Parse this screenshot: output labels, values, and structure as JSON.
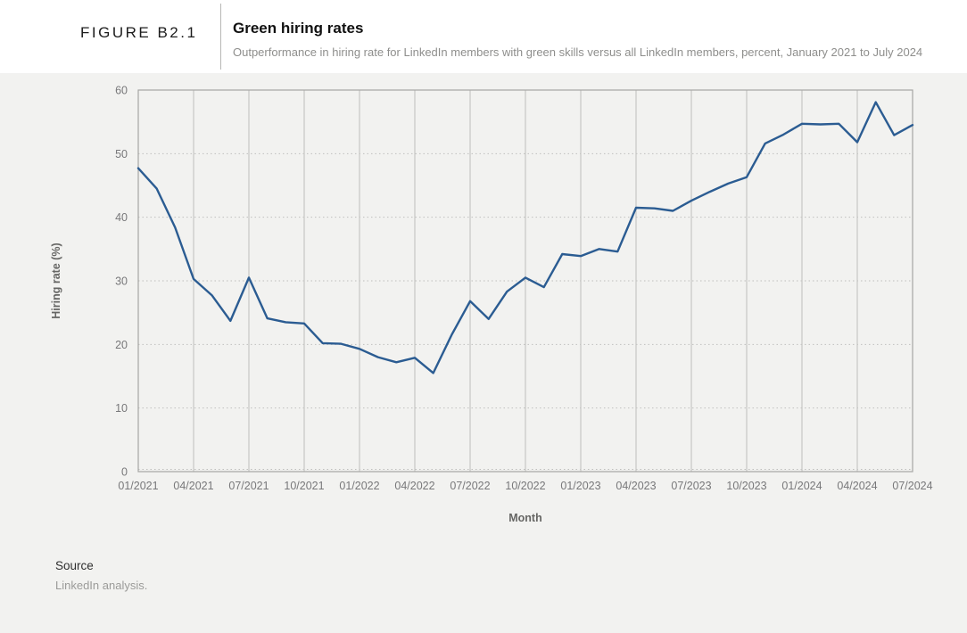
{
  "header": {
    "figure_label": "FIGURE B2.1",
    "title": "Green hiring rates",
    "subtitle": "Outperformance in hiring rate for LinkedIn members with green skills versus all LinkedIn members, percent, January 2021 to July 2024"
  },
  "chart_data": {
    "type": "line",
    "title": "Green hiring rates",
    "xlabel": "Month",
    "ylabel": "Hiring rate (%)",
    "ylim": [
      0,
      60
    ],
    "yticks": [
      0,
      10,
      20,
      30,
      40,
      50,
      60
    ],
    "xtick_labels": [
      "01/2021",
      "04/2021",
      "07/2021",
      "10/2021",
      "01/2022",
      "04/2022",
      "07/2022",
      "10/2022",
      "01/2023",
      "04/2023",
      "07/2023",
      "10/2023",
      "01/2024",
      "04/2024",
      "07/2024"
    ],
    "categories": [
      "01/2021",
      "02/2021",
      "03/2021",
      "04/2021",
      "05/2021",
      "06/2021",
      "07/2021",
      "08/2021",
      "09/2021",
      "10/2021",
      "11/2021",
      "12/2021",
      "01/2022",
      "02/2022",
      "03/2022",
      "04/2022",
      "05/2022",
      "06/2022",
      "07/2022",
      "08/2022",
      "09/2022",
      "10/2022",
      "11/2022",
      "12/2022",
      "01/2023",
      "02/2023",
      "03/2023",
      "04/2023",
      "05/2023",
      "06/2023",
      "07/2023",
      "08/2023",
      "09/2023",
      "10/2023",
      "11/2023",
      "12/2023",
      "01/2024",
      "02/2024",
      "03/2024",
      "04/2024",
      "05/2024",
      "06/2024",
      "07/2024"
    ],
    "values": [
      47.7,
      44.5,
      38.4,
      30.3,
      27.7,
      23.7,
      30.5,
      24.1,
      23.5,
      23.3,
      20.2,
      20.1,
      19.3,
      18.0,
      17.2,
      17.9,
      15.5,
      21.5,
      26.8,
      24.0,
      28.3,
      30.5,
      29.0,
      34.2,
      33.9,
      35.0,
      34.6,
      41.5,
      41.4,
      41.0,
      42.6,
      44.0,
      45.3,
      46.3,
      51.6,
      53.0,
      54.7,
      54.6,
      54.7,
      51.8,
      58.1,
      52.9,
      54.5
    ],
    "line_color": "#2b5c92",
    "grid": {
      "vertical": "solid quarterly",
      "horizontal": "dotted every 10"
    },
    "legend": "none"
  },
  "source": {
    "heading": "Source",
    "text": "LinkedIn analysis."
  }
}
